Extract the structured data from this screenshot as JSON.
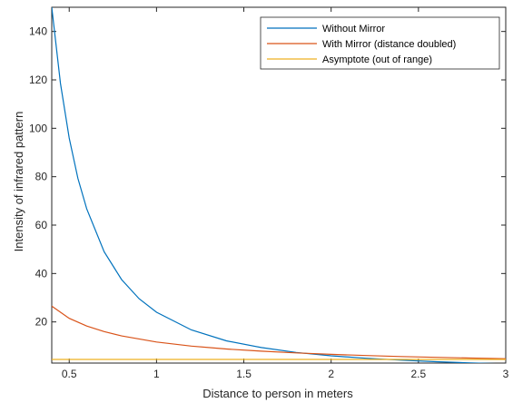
{
  "chart_data": {
    "type": "line",
    "title": "",
    "xlabel": "Distance to person in meters",
    "ylabel": "Intensity of infrared pattern",
    "xlim": [
      0.4,
      3
    ],
    "ylim": [
      3,
      150
    ],
    "grid": false,
    "legend_position": "top-right",
    "x_ticks": [
      0.5,
      1,
      1.5,
      2,
      2.5,
      3
    ],
    "x_tick_labels": [
      "0.5",
      "1",
      "1.5",
      "2",
      "2.5",
      "3"
    ],
    "y_ticks": [
      20,
      40,
      60,
      80,
      100,
      120,
      140
    ],
    "y_tick_labels": [
      "20",
      "40",
      "60",
      "80",
      "100",
      "120",
      "140"
    ],
    "series": [
      {
        "name": "Without Mirror",
        "color": "#0072BD",
        "x": [
          0.4,
          0.45,
          0.5,
          0.55,
          0.6,
          0.7,
          0.8,
          0.9,
          1.0,
          1.2,
          1.4,
          1.6,
          1.8,
          2.0,
          2.2,
          2.4,
          2.6,
          2.8,
          3.0
        ],
        "y": [
          150,
          118.5,
          96,
          79.3,
          66.7,
          49,
          37.5,
          29.6,
          24,
          16.7,
          12.2,
          9.4,
          7.4,
          6,
          5,
          4.2,
          3.55,
          3.06,
          2.67
        ]
      },
      {
        "name": "With Mirror (distance doubled)",
        "color": "#D95319",
        "x": [
          0.4,
          0.5,
          0.6,
          0.7,
          0.8,
          1.0,
          1.2,
          1.4,
          1.6,
          1.8,
          2.0,
          2.2,
          2.4,
          2.6,
          2.8,
          3.0
        ],
        "y": [
          26.5,
          21.5,
          18.3,
          16,
          14.2,
          11.7,
          10,
          8.8,
          7.9,
          7.2,
          6.6,
          6.1,
          5.7,
          5.35,
          5.05,
          4.8
        ]
      },
      {
        "name": "Asymptote (out of range)",
        "color": "#EDB120",
        "x": [
          0.4,
          3.0
        ],
        "y": [
          4.5,
          4.5
        ]
      }
    ]
  }
}
